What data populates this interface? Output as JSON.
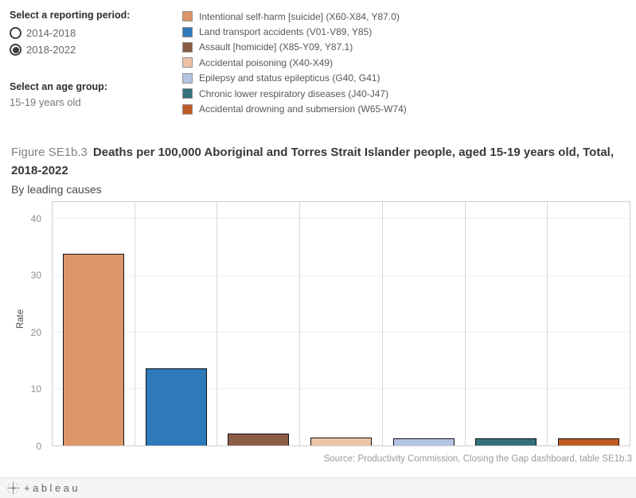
{
  "controls": {
    "reporting_period_label": "Select a reporting period:",
    "reporting_period_options": [
      {
        "label": "2014-2018",
        "selected": false
      },
      {
        "label": "2018-2022",
        "selected": true
      }
    ],
    "age_group_label": "Select an age group:",
    "age_group_value": "15-19 years old"
  },
  "legend": {
    "items": [
      {
        "label": "Intentional self-harm [suicide] (X60-X84, Y87.0)",
        "color": "#de9569"
      },
      {
        "label": "Land transport accidents (V01-V89, Y85)",
        "color": "#2e79ba"
      },
      {
        "label": "Assault [homicide] (X85-Y09, Y87.1)",
        "color": "#8b5d44"
      },
      {
        "label": "Accidental poisoning (X40-X49)",
        "color": "#eec3a3"
      },
      {
        "label": "Epilepsy and status epilepticus (G40, G41)",
        "color": "#b3c5e3"
      },
      {
        "label": "Chronic lower respiratory diseases (J40-J47)",
        "color": "#34707d"
      },
      {
        "label": "Accidental drowning and submersion (W65-W74)",
        "color": "#c05a24"
      }
    ]
  },
  "title": {
    "prefix": "Figure SE1b.3",
    "main": "Deaths per 100,000 Aboriginal and Torres Strait Islander people, aged 15-19 years old, Total, 2018-2022",
    "subtitle": "By leading causes"
  },
  "chart_data": {
    "type": "bar",
    "categories": [
      "Intentional self-harm [suicide] (X60-X84, Y87.0)",
      "Land transport accidents (V01-V89, Y85)",
      "Assault [homicide] (X85-Y09, Y87.1)",
      "Accidental poisoning (X40-X49)",
      "Epilepsy and status epilepticus (G40, G41)",
      "Chronic lower respiratory diseases (J40-J47)",
      "Accidental drowning and submersion (W65-W74)"
    ],
    "values": [
      33.8,
      13.7,
      2.1,
      1.4,
      1.2,
      1.3,
      1.2
    ],
    "colors": [
      "#de9569",
      "#2e79ba",
      "#8b5d44",
      "#eec3a3",
      "#b3c5e3",
      "#34707d",
      "#c05a24"
    ],
    "title": "",
    "xlabel": "",
    "ylabel": "Rate",
    "ylim": [
      0,
      43
    ],
    "yticks": [
      0,
      10,
      20,
      30,
      40
    ],
    "grid": true,
    "legend_position": "top"
  },
  "source_note": "Source: Productivity Commission, Closing the Gap dashboard, table SE1b.3",
  "footer": {
    "wordmark": "+ableau"
  }
}
